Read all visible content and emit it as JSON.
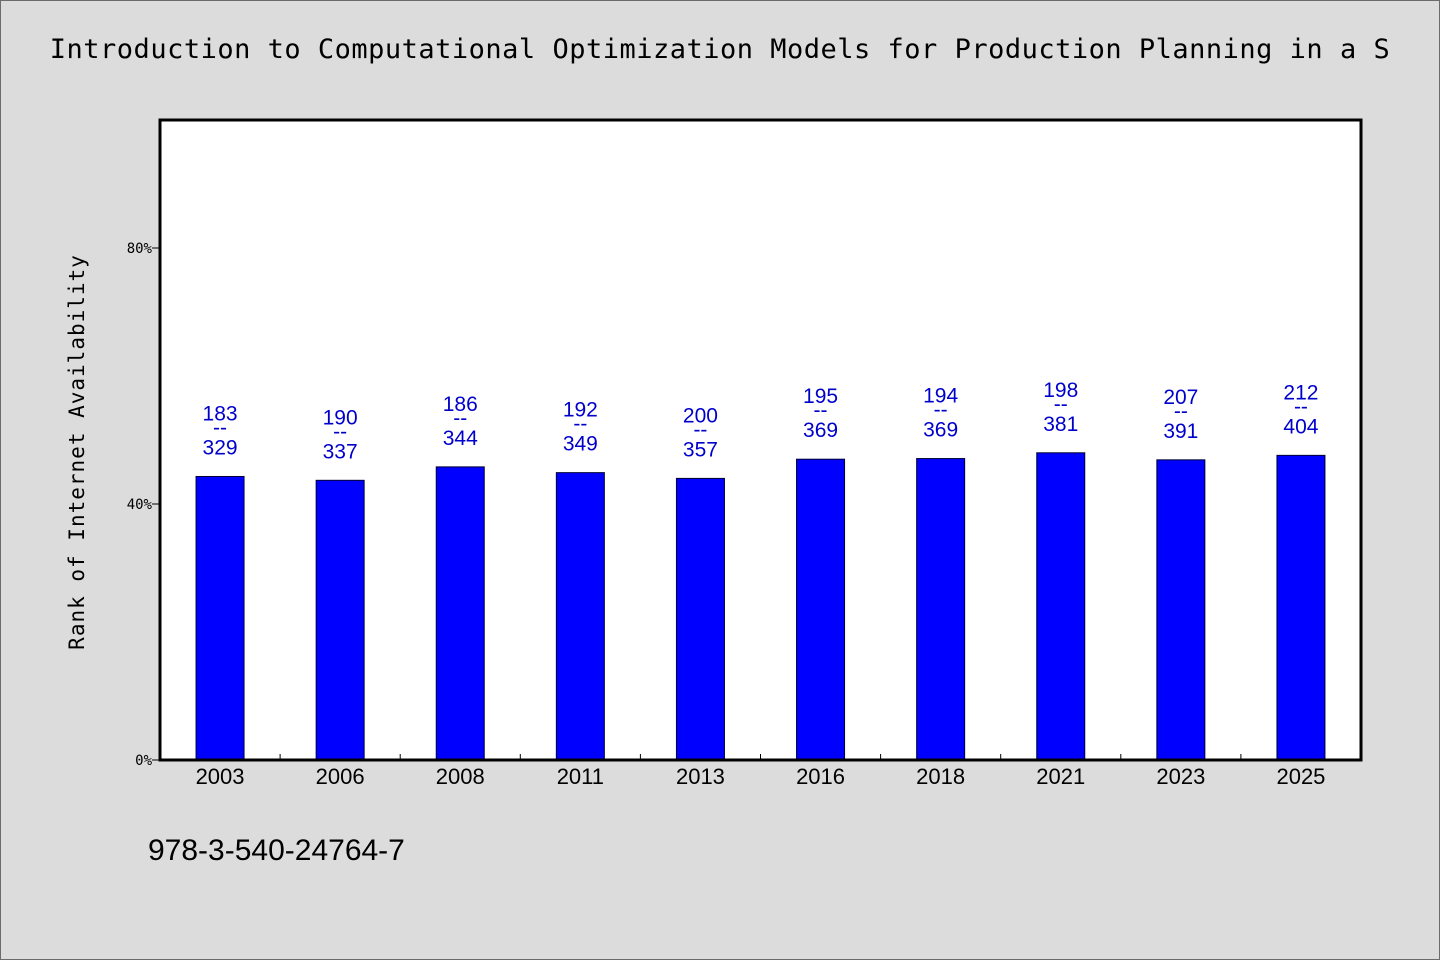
{
  "chart_data": {
    "type": "bar",
    "title": "Introduction to Computational Optimization Models for Production Planning in a S",
    "ylabel": "Rank of Internet Availability",
    "xlabel": "",
    "categories": [
      "2003",
      "2006",
      "2008",
      "2011",
      "2013",
      "2016",
      "2018",
      "2021",
      "2023",
      "2025"
    ],
    "values": [
      44.3,
      43.7,
      45.8,
      44.9,
      44.0,
      47.0,
      47.1,
      48.0,
      46.9,
      47.6
    ],
    "bar_labels": [
      {
        "top": "183",
        "sep": "--",
        "bottom": "329"
      },
      {
        "top": "190",
        "sep": "--",
        "bottom": "337"
      },
      {
        "top": "186",
        "sep": "--",
        "bottom": "344"
      },
      {
        "top": "192",
        "sep": "--",
        "bottom": "349"
      },
      {
        "top": "200",
        "sep": "--",
        "bottom": "357"
      },
      {
        "top": "195",
        "sep": "--",
        "bottom": "369"
      },
      {
        "top": "194",
        "sep": "--",
        "bottom": "369"
      },
      {
        "top": "198",
        "sep": "--",
        "bottom": "381"
      },
      {
        "top": "207",
        "sep": "--",
        "bottom": "391"
      },
      {
        "top": "212",
        "sep": "--",
        "bottom": "404"
      }
    ],
    "yticks": [
      {
        "value": 0,
        "label": "0%"
      },
      {
        "value": 40,
        "label": "40%"
      },
      {
        "value": 80,
        "label": "80%"
      }
    ],
    "ylim": [
      0,
      100
    ],
    "grid": false,
    "legend": "none",
    "colors": {
      "bar": "#0000ff",
      "bar_edge": "#000033",
      "label": "#0000cc",
      "plot_bg": "#ffffff",
      "page_bg": "#dcdcdc"
    }
  },
  "footer": {
    "caption": "978-3-540-24764-7"
  }
}
